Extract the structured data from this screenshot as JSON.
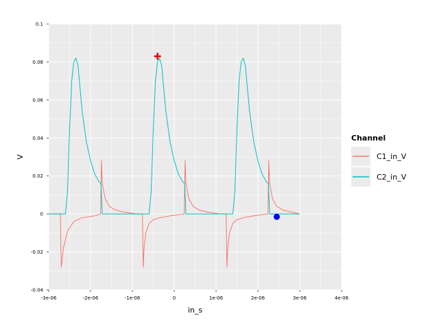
{
  "chart_data": {
    "type": "line",
    "xlabel": "in_s",
    "ylabel": "V",
    "xlim": [
      -3e-06,
      4e-06
    ],
    "ylim": [
      -0.04,
      0.1
    ],
    "x_ticks": [
      -3e-06,
      -2e-06,
      -1e-06,
      0,
      1e-06,
      2e-06,
      3e-06,
      4e-06
    ],
    "x_tick_labels": [
      "-3e-06",
      "-2e-06",
      "-1e-06",
      "0",
      "1e-06",
      "2e-06",
      "3e-06",
      "4e-06"
    ],
    "y_ticks": [
      -0.04,
      -0.02,
      0,
      0.02,
      0.04,
      0.06,
      0.08,
      0.1
    ],
    "y_tick_labels": [
      "-0.04",
      "-0.02",
      "0",
      "0.02",
      "0.04",
      "0.06",
      "0.08",
      "0.1"
    ],
    "grid": true,
    "legend": {
      "title": "Channel",
      "position": "right"
    },
    "series": [
      {
        "name": "C1_in_V",
        "color": "#f8766d",
        "x": [
          -3e-06,
          -2.72e-06,
          -2.7e-06,
          -2.65e-06,
          -2.55e-06,
          -2.4e-06,
          -2.2e-06,
          -1.9e-06,
          -1.76e-06,
          -1.74e-06,
          -1.72e-06,
          -1.65e-06,
          -1.55e-06,
          -1.4e-06,
          -1.2e-06,
          -9e-07,
          -7.6e-07,
          -7.4e-07,
          -7.2e-07,
          -6.8e-07,
          -6e-07,
          -5e-07,
          -3.5e-07,
          -1e-07,
          2.4e-07,
          2.6e-07,
          2.8e-07,
          3.5e-07,
          4.5e-07,
          6e-07,
          8e-07,
          1.1e-06,
          1.24e-06,
          1.26e-06,
          1.28e-06,
          1.32e-06,
          1.4e-06,
          1.5e-06,
          1.65e-06,
          1.9e-06,
          2.24e-06,
          2.26e-06,
          2.28e-06,
          2.35e-06,
          2.45e-06,
          2.6e-06,
          2.8e-06,
          3e-06
        ],
        "y": [
          0.0,
          0.0,
          -0.028,
          -0.018,
          -0.009,
          -0.004,
          -0.002,
          -0.001,
          0.0,
          0.028,
          0.016,
          0.008,
          0.004,
          0.002,
          0.001,
          0.0,
          0.0,
          -0.028,
          -0.018,
          -0.01,
          -0.005,
          -0.003,
          -0.002,
          -0.001,
          0.0,
          0.028,
          0.016,
          0.008,
          0.004,
          0.002,
          0.001,
          0.0,
          0.0,
          -0.028,
          -0.018,
          -0.01,
          -0.005,
          -0.003,
          -0.002,
          -0.001,
          0.0,
          0.028,
          0.016,
          0.008,
          0.004,
          0.002,
          0.001,
          0.0
        ]
      },
      {
        "name": "C2_in_V",
        "color": "#00bfc4",
        "x": [
          -3e-06,
          -2.6e-06,
          -2.55e-06,
          -2.5e-06,
          -2.45e-06,
          -2.4e-06,
          -2.35e-06,
          -2.3e-06,
          -2.25e-06,
          -2.2e-06,
          -2.1e-06,
          -2e-06,
          -1.9e-06,
          -1.8e-06,
          -1.75e-06,
          -1.72e-06,
          -1.6e-06,
          -7e-07,
          -6e-07,
          -5.5e-07,
          -5e-07,
          -4.5e-07,
          -4e-07,
          -3.5e-07,
          -3e-07,
          -2.5e-07,
          -2e-07,
          -1e-07,
          0.0,
          1e-07,
          2e-07,
          2.5e-07,
          2.8e-07,
          4e-07,
          1.3e-06,
          1.4e-06,
          1.45e-06,
          1.5e-06,
          1.55e-06,
          1.6e-06,
          1.65e-06,
          1.7e-06,
          1.75e-06,
          1.8e-06,
          1.9e-06,
          2e-06,
          2.1e-06,
          2.2e-06,
          2.25e-06,
          2.28e-06,
          2.4e-06,
          3e-06
        ],
        "y": [
          0.0,
          0.0,
          0.012,
          0.045,
          0.07,
          0.08,
          0.082,
          0.078,
          0.066,
          0.054,
          0.038,
          0.028,
          0.021,
          0.017,
          0.016,
          0.0,
          0.0,
          0.0,
          0.0,
          0.012,
          0.045,
          0.07,
          0.08,
          0.082,
          0.078,
          0.066,
          0.054,
          0.038,
          0.028,
          0.021,
          0.017,
          0.016,
          0.0,
          0.0,
          0.0,
          0.0,
          0.012,
          0.045,
          0.07,
          0.08,
          0.082,
          0.078,
          0.066,
          0.054,
          0.038,
          0.028,
          0.021,
          0.017,
          0.016,
          0.0,
          0.0,
          0.0
        ]
      }
    ],
    "annotations": [
      {
        "type": "marker",
        "shape": "plus",
        "color": "#e00000",
        "x": -4e-07,
        "y": 0.083
      },
      {
        "type": "marker",
        "shape": "circle",
        "color": "#0000ff",
        "x": 2.45e-06,
        "y": -0.0015
      }
    ]
  }
}
